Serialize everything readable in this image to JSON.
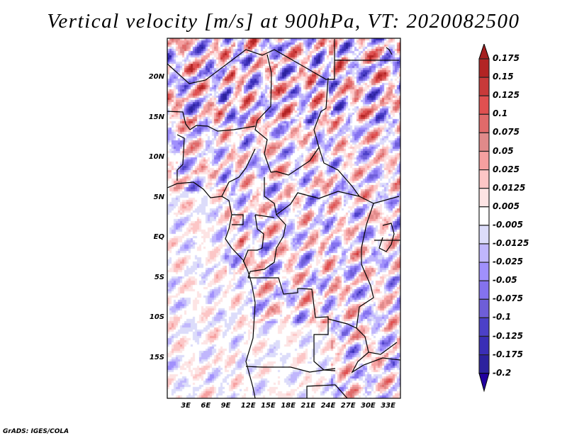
{
  "title": "Vertical velocity [m/s] at 900hPa, VT: 2020082500",
  "footer": "GrADS: IGES/COLA",
  "map": {
    "lon_range": [
      0,
      35
    ],
    "lat_range": [
      -20,
      25
    ],
    "lat_ticks": [
      {
        "v": 20,
        "label": "20N"
      },
      {
        "v": 15,
        "label": "15N"
      },
      {
        "v": 10,
        "label": "10N"
      },
      {
        "v": 5,
        "label": "5N"
      },
      {
        "v": 0,
        "label": "EQ"
      },
      {
        "v": -5,
        "label": "5S"
      },
      {
        "v": -10,
        "label": "10S"
      },
      {
        "v": -15,
        "label": "15S"
      }
    ],
    "lon_ticks": [
      {
        "v": 3,
        "label": "3E"
      },
      {
        "v": 6,
        "label": "6E"
      },
      {
        "v": 9,
        "label": "9E"
      },
      {
        "v": 12,
        "label": "12E"
      },
      {
        "v": 15,
        "label": "15E"
      },
      {
        "v": 18,
        "label": "18E"
      },
      {
        "v": 21,
        "label": "21E"
      },
      {
        "v": 24,
        "label": "24E"
      },
      {
        "v": 27,
        "label": "27E"
      },
      {
        "v": 30,
        "label": "30E"
      },
      {
        "v": 33,
        "label": "33E"
      }
    ]
  },
  "colorbar": {
    "labels": [
      "0.175",
      "0.15",
      "0.125",
      "0.1",
      "0.075",
      "0.05",
      "0.025",
      "0.0125",
      "0.005",
      "-0.005",
      "-0.0125",
      "-0.025",
      "-0.05",
      "-0.075",
      "-0.1",
      "-0.125",
      "-0.175",
      "-0.2"
    ],
    "colors": [
      "#a52020",
      "#b22424",
      "#c83a3a",
      "#e05050",
      "#e06a6a",
      "#e08a8a",
      "#f5a0a0",
      "#fcc6c6",
      "#fde4e4",
      "#ffffff",
      "#dcdcfa",
      "#c0b6fc",
      "#a090fc",
      "#8472ee",
      "#6e5ed8",
      "#4c40c8",
      "#3a2eb6",
      "#2c229e",
      "#2200a0"
    ]
  }
}
